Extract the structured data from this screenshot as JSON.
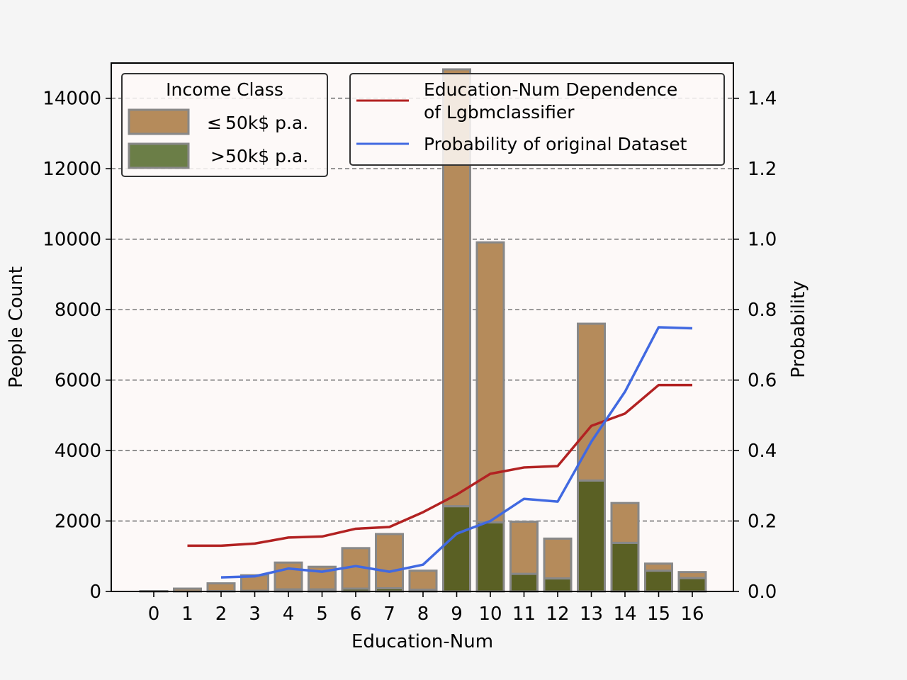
{
  "chart_data": {
    "type": "bar",
    "xlabel": "Education-Num",
    "ylabel_left": "People Count",
    "ylabel_right": "Probability",
    "categories": [
      0,
      1,
      2,
      3,
      4,
      5,
      6,
      7,
      8,
      9,
      10,
      11,
      12,
      13,
      14,
      15,
      16
    ],
    "ylim_left": [
      0,
      15000
    ],
    "yticks_left": [
      0,
      2000,
      4000,
      6000,
      8000,
      10000,
      12000,
      14000
    ],
    "ylim_right": [
      0,
      1.5
    ],
    "yticks_right": [
      "0.0",
      "0.2",
      "0.4",
      "0.6",
      "0.8",
      "1.0",
      "1.2",
      "1.4"
    ],
    "grid": "horizontal-dashed",
    "bar_series": [
      {
        "name": "≤50k$ p.a.",
        "color": "#b58b5b",
        "values": [
          10,
          80,
          220,
          440,
          760,
          640,
          1150,
          1540,
          540,
          12400,
          7950,
          1480,
          1130,
          4450,
          1130,
          200,
          170
        ]
      },
      {
        "name": ">50k$ p.a.",
        "color": "#5a6024",
        "values": [
          0,
          0,
          10,
          20,
          60,
          60,
          80,
          90,
          50,
          2420,
          1960,
          500,
          370,
          3150,
          1380,
          590,
          380
        ]
      }
    ],
    "line_series": [
      {
        "name": "Education-Num Dependence of Lgbmclassifier",
        "color": "#b22222",
        "x": [
          1,
          2,
          3,
          4,
          5,
          6,
          7,
          8,
          9,
          10,
          11,
          12,
          13,
          14,
          15,
          16
        ],
        "values": [
          0.13,
          0.13,
          0.136,
          0.153,
          0.156,
          0.178,
          0.183,
          0.225,
          0.275,
          0.334,
          0.352,
          0.356,
          0.47,
          0.505,
          0.586,
          0.586
        ]
      },
      {
        "name": "Probability of original Dataset",
        "color": "#4169e1",
        "x": [
          2,
          3,
          4,
          5,
          6,
          7,
          8,
          9,
          10,
          11,
          12,
          13,
          14,
          15,
          16
        ],
        "values": [
          0.04,
          0.043,
          0.065,
          0.056,
          0.072,
          0.056,
          0.076,
          0.164,
          0.2,
          0.263,
          0.255,
          0.425,
          0.567,
          0.75,
          0.747
        ]
      }
    ],
    "legend_bars": {
      "title": "Income Class",
      "labels": [
        "≤ 50k$ p.a.",
        ">50k$ p.a."
      ],
      "placement": "top-left"
    },
    "legend_lines": {
      "labels": [
        "Education-Num Dependence",
        "of Lgbmclassifier",
        "Probability of original Dataset"
      ],
      "placement": "top-center"
    }
  }
}
